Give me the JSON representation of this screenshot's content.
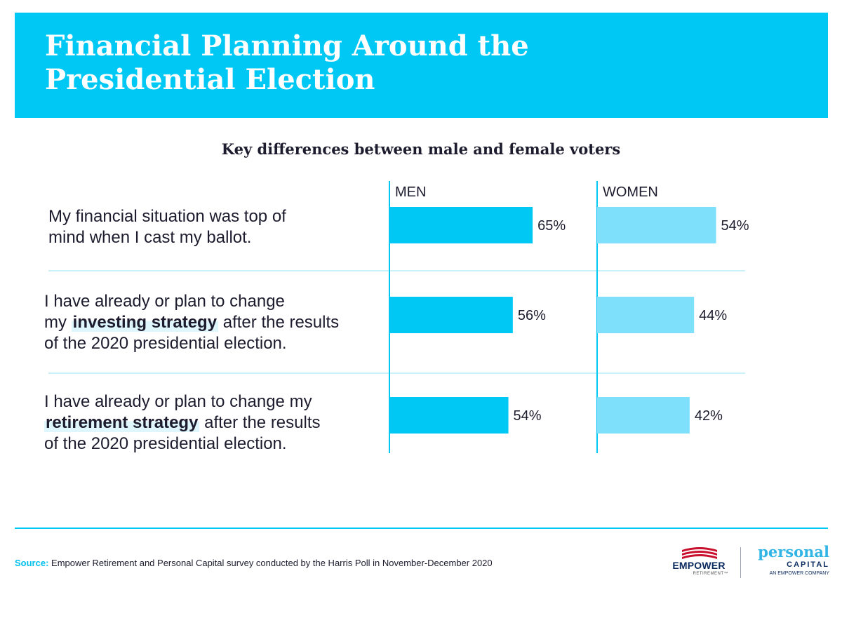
{
  "header": {
    "title_line1": "Financial Planning Around the",
    "title_line2": "Presidential Election"
  },
  "subtitle": "Key differences between male and female voters",
  "questions": [
    {
      "line1": "My financial situation was top of",
      "line2": "mind when I cast my ballot."
    },
    {
      "line1": "I have already or plan to change",
      "line2_pre": "my ",
      "line2_bold": "investing strategy",
      "line2_post": " after the results",
      "line3": "of the 2020 presidential election."
    },
    {
      "line1": "I have already or plan to change my",
      "line2_bold": "retirement strategy",
      "line2_post": " after the results",
      "line3": "of the 2020 presidential election."
    }
  ],
  "chart_data": {
    "type": "bar",
    "orientation": "horizontal",
    "title": "Key differences between male and female voters",
    "categories": [
      "My financial situation was top of mind when I cast my ballot.",
      "I have already or plan to change my investing strategy after the results of the 2020 presidential election.",
      "I have already or plan to change my retirement strategy after the results of the 2020 presidential election."
    ],
    "series": [
      {
        "name": "MEN",
        "values": [
          65,
          56,
          54
        ],
        "labels": [
          "65%",
          "56%",
          "54%"
        ],
        "color": "#00c8f4"
      },
      {
        "name": "WOMEN",
        "values": [
          54,
          44,
          42
        ],
        "labels": [
          "54%",
          "44%",
          "42%"
        ],
        "color": "#7fe0fb"
      }
    ],
    "xlim": [
      0,
      100
    ],
    "unit": "%"
  },
  "colors": {
    "accent": "#00c8f4",
    "women_bar": "#7fe0fb",
    "divider": "#b9ecf8",
    "text": "#1c1c2e"
  },
  "footer": {
    "source_label": "Source:",
    "source_text": " Empower Retirement and Personal Capital survey conducted by the Harris Poll in November-December 2020"
  },
  "logos": {
    "empower_name": "EMPOWER",
    "empower_sub": "RETIREMENT™",
    "pc_word": "personal",
    "pc_capital": "CAPITAL",
    "pc_tag": "AN EMPOWER COMPANY"
  }
}
